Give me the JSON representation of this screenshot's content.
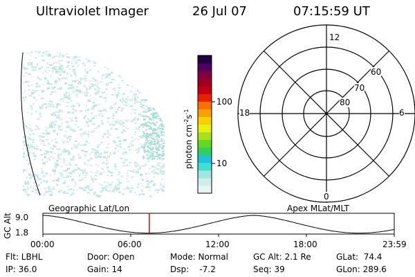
{
  "header": {
    "title": "Ultraviolet Imager",
    "date": "26 Jul 07",
    "time": "07:15:59 UT"
  },
  "colorbar": {
    "unit_label": "photon cm",
    "unit_exp1": "-2",
    "unit_s": "s",
    "unit_exp2": "-1",
    "tick_100": "100",
    "tick_10": "10",
    "colors": [
      "#e8f4f2",
      "#cfeeea",
      "#9fe6e0",
      "#40e0d0",
      "#20c0e0",
      "#30d060",
      "#60d820",
      "#a8e020",
      "#e8f010",
      "#f8d000",
      "#f8a000",
      "#f87000",
      "#e82000",
      "#c00010",
      "#a00020",
      "#800040",
      "#500060",
      "#200040"
    ]
  },
  "polar": {
    "label_top": "12",
    "label_bottom": "0",
    "label_left": "18",
    "label_right": "6",
    "lat_60": "60",
    "lat_70": "70",
    "lat_80": "80"
  },
  "timeline": {
    "left_label": "Geographic Lat/Lon",
    "right_label": "Apex MLat/MLT",
    "yaxis_label": "GC Alt",
    "y_max": "9.0",
    "y_min": "1.8",
    "ticks": [
      "00:00",
      "06:00",
      "12:00",
      "18:00",
      "23:59"
    ],
    "current_fraction": 0.3028
  },
  "info": {
    "filter": "Flt: LBHL",
    "ip": "IP: 36.0",
    "door": "Door: Open",
    "gain": "Gain: 14",
    "mode": "Mode: Normal",
    "dsp": "Dsp:    -7.2",
    "gc_alt": "GC Alt: 2.1 Re",
    "seq": "Seq: 39",
    "glat": "GLat:  74.4",
    "glon": "GLon: 289.6"
  }
}
